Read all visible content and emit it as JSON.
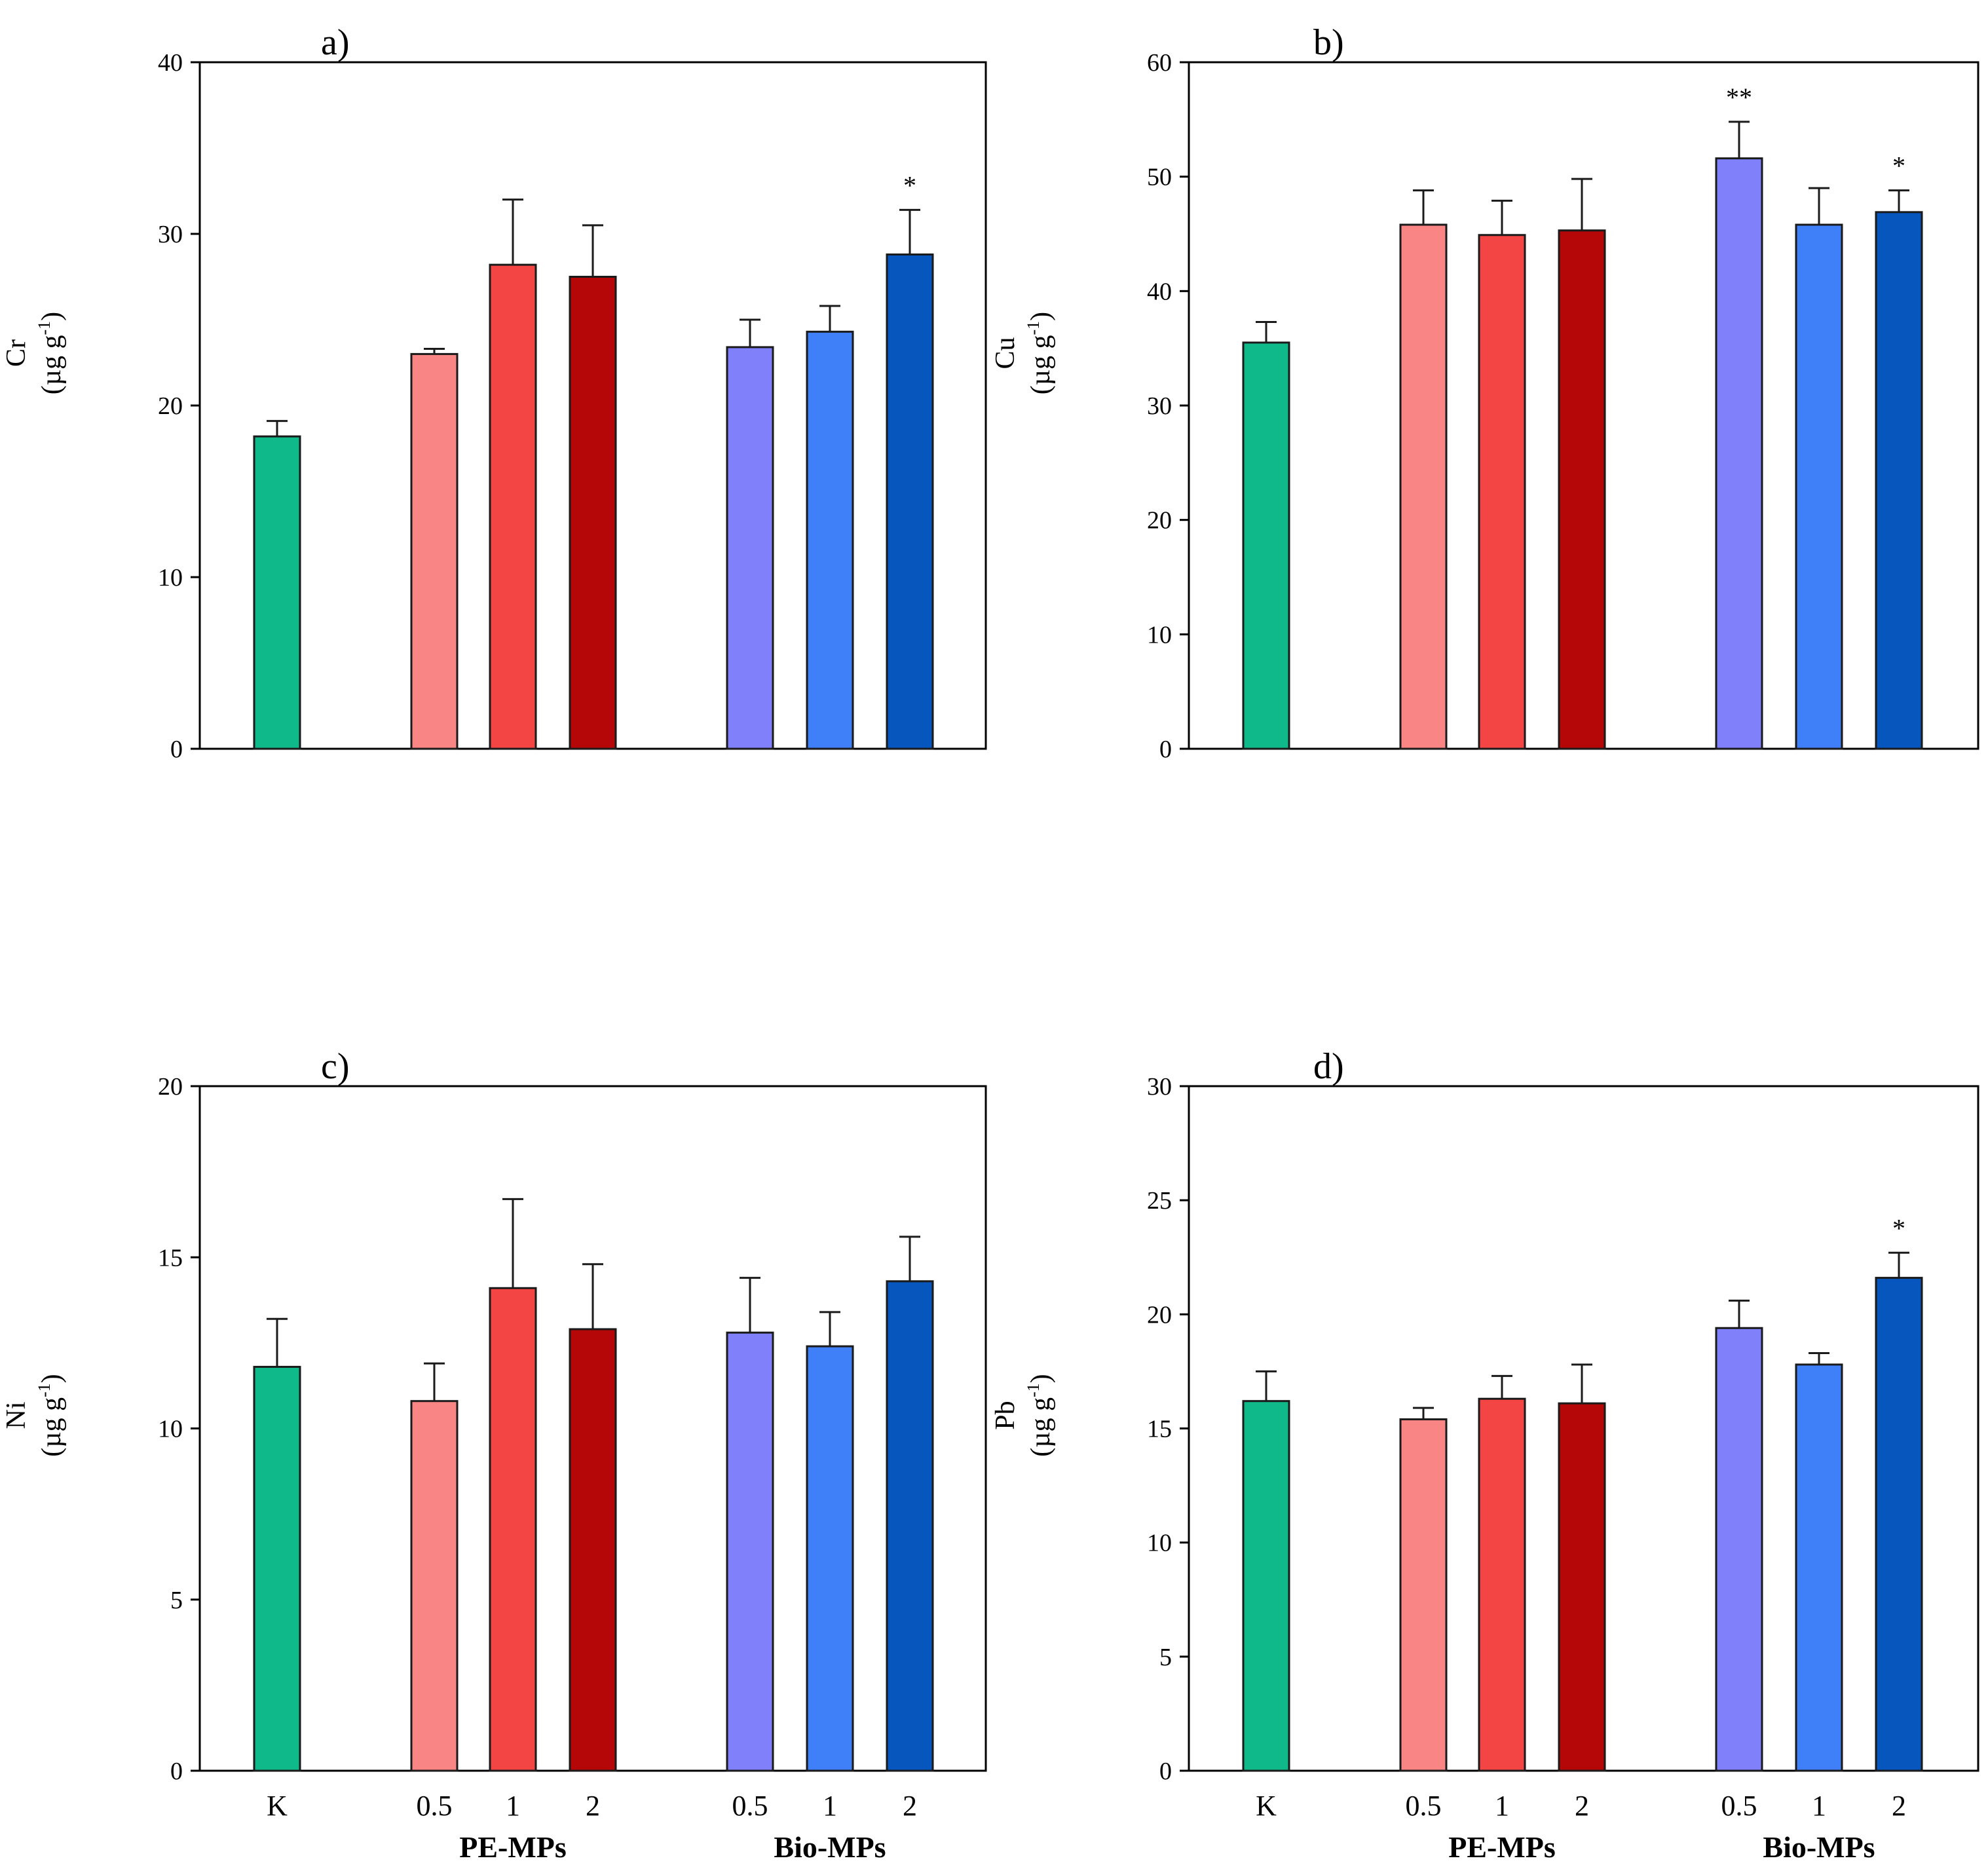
{
  "colors": {
    "K": "#10b98a",
    "PE-0.5": "#f98585",
    "PE-1": "#f44545",
    "PE-2": "#b50707",
    "Bio-0.5": "#8080fa",
    "Bio-1": "#3f7ff8",
    "Bio-2": "#0656bd",
    "axis": "#000000"
  },
  "chart_data": [
    {
      "type": "bar",
      "panel_label": "a)",
      "ylabel_main": "Cr",
      "ylabel_unit": "(µg g",
      "ylabel_sup": "-1",
      "ylabel_close": ")",
      "ylim": [
        0,
        40
      ],
      "yticks": [
        0,
        10,
        20,
        30,
        40
      ],
      "categories": [
        "K",
        "0.5",
        "1",
        "2",
        "0.5",
        "1",
        "2"
      ],
      "series_keys": [
        "K",
        "PE-0.5",
        "PE-1",
        "PE-2",
        "Bio-0.5",
        "Bio-1",
        "Bio-2"
      ],
      "values": [
        18.2,
        23.0,
        28.2,
        27.5,
        23.4,
        24.3,
        28.8
      ],
      "errors": [
        0.9,
        0.3,
        3.8,
        3.0,
        1.6,
        1.5,
        2.6
      ],
      "significance": [
        "",
        "",
        "",
        "",
        "",
        "",
        "*"
      ]
    },
    {
      "type": "bar",
      "panel_label": "b)",
      "ylabel_main": "Cu",
      "ylabel_unit": "(µg g",
      "ylabel_sup": "-1",
      "ylabel_close": ")",
      "ylim": [
        0,
        60
      ],
      "yticks": [
        0,
        10,
        20,
        30,
        40,
        50,
        60
      ],
      "categories": [
        "K",
        "0.5",
        "1",
        "2",
        "0.5",
        "1",
        "2"
      ],
      "series_keys": [
        "K",
        "PE-0.5",
        "PE-1",
        "PE-2",
        "Bio-0.5",
        "Bio-1",
        "Bio-2"
      ],
      "values": [
        35.5,
        45.8,
        44.9,
        45.3,
        51.6,
        45.8,
        46.9
      ],
      "errors": [
        1.8,
        3.0,
        3.0,
        4.5,
        3.2,
        3.2,
        1.9
      ],
      "significance": [
        "",
        "",
        "",
        "",
        "**",
        "",
        "*"
      ]
    },
    {
      "type": "bar",
      "panel_label": "c)",
      "ylabel_main": "Ni",
      "ylabel_unit": "(µg g",
      "ylabel_sup": "-1",
      "ylabel_close": ")",
      "ylim": [
        0,
        20
      ],
      "yticks": [
        0,
        5,
        10,
        15,
        20
      ],
      "categories": [
        "K",
        "0.5",
        "1",
        "2",
        "0.5",
        "1",
        "2"
      ],
      "series_keys": [
        "K",
        "PE-0.5",
        "PE-1",
        "PE-2",
        "Bio-0.5",
        "Bio-1",
        "Bio-2"
      ],
      "values": [
        11.8,
        10.8,
        14.1,
        12.9,
        12.8,
        12.4,
        14.3
      ],
      "errors": [
        1.4,
        1.1,
        2.6,
        1.9,
        1.6,
        1.0,
        1.3
      ],
      "significance": [
        "",
        "",
        "",
        "",
        "",
        "",
        ""
      ]
    },
    {
      "type": "bar",
      "panel_label": "d)",
      "ylabel_main": "Pb",
      "ylabel_unit": "(µg g",
      "ylabel_sup": "-1",
      "ylabel_close": ")",
      "ylim": [
        0,
        30
      ],
      "yticks": [
        0,
        5,
        10,
        15,
        20,
        25,
        30
      ],
      "categories": [
        "K",
        "0.5",
        "1",
        "2",
        "0.5",
        "1",
        "2"
      ],
      "series_keys": [
        "K",
        "PE-0.5",
        "PE-1",
        "PE-2",
        "Bio-0.5",
        "Bio-1",
        "Bio-2"
      ],
      "values": [
        16.2,
        15.4,
        16.3,
        16.1,
        19.4,
        17.8,
        21.6
      ],
      "errors": [
        1.3,
        0.5,
        1.0,
        1.7,
        1.2,
        0.5,
        1.1
      ],
      "significance": [
        "",
        "",
        "",
        "",
        "",
        "",
        "*"
      ]
    }
  ],
  "group_labels": [
    "PE-MPs",
    "Bio-MPs"
  ]
}
